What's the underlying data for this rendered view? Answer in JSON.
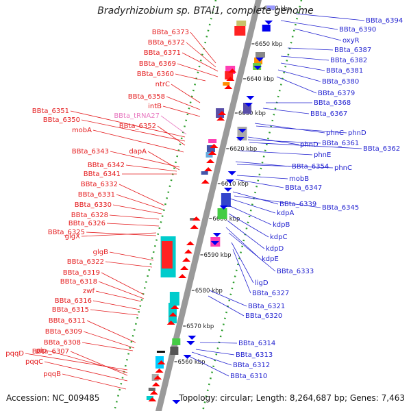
{
  "title": "Bradyrhizobium sp. BTAi1, complete genome",
  "footer": {
    "accession": "Accession: NC_009485",
    "summary": "Topology: circular; Length: 8,264,687 bp; Genes: 7,463"
  },
  "colors": {
    "forward_label": "#e41a1c",
    "reverse_label": "#1f1fcf",
    "rna_label": "#e879c0",
    "forward_gene": "#ff0000",
    "reverse_gene": "#0000ee",
    "backbone": "#999999",
    "tick_dots": "#2e9e2e"
  },
  "ticks": [
    "6660 kbp",
    "6650 kbp",
    "6640 kbp",
    "6630 kbp",
    "6620 kbp",
    "6610 kbp",
    "6600 kbp",
    "6590 kbp",
    "6580 kbp",
    "6570 kbp",
    "6560 kbp"
  ],
  "left_labels": [
    {
      "text": "BBta_6373",
      "class": "red"
    },
    {
      "text": "BBta_6372",
      "class": "red"
    },
    {
      "text": "BBta_6371",
      "class": "red"
    },
    {
      "text": "BBta_6369",
      "class": "red"
    },
    {
      "text": "BBta_6360",
      "class": "red"
    },
    {
      "text": "ntrC",
      "class": "red"
    },
    {
      "text": "BBta_6358",
      "class": "red"
    },
    {
      "text": "intB",
      "class": "red"
    },
    {
      "text": "BBta_6351",
      "class": "red"
    },
    {
      "text": "BBta_6350",
      "class": "red"
    },
    {
      "text": "BBta_tRNA27",
      "class": "pink"
    },
    {
      "text": "BBta_6352",
      "class": "red"
    },
    {
      "text": "mobA",
      "class": "red"
    },
    {
      "text": "BBta_6343",
      "class": "red"
    },
    {
      "text": "dapA",
      "class": "red"
    },
    {
      "text": "BBta_6342",
      "class": "red"
    },
    {
      "text": "BBta_6341",
      "class": "red"
    },
    {
      "text": "BBta_6332",
      "class": "red"
    },
    {
      "text": "BBta_6331",
      "class": "red"
    },
    {
      "text": "BBta_6330",
      "class": "red"
    },
    {
      "text": "BBta_6328",
      "class": "red"
    },
    {
      "text": "BBta_6326",
      "class": "red"
    },
    {
      "text": "glgX",
      "class": "red"
    },
    {
      "text": "BBta_6325",
      "class": "red"
    },
    {
      "text": "glgB",
      "class": "red"
    },
    {
      "text": "BBta_6322",
      "class": "red"
    },
    {
      "text": "BBta_6319",
      "class": "red"
    },
    {
      "text": "BBta_6318",
      "class": "red"
    },
    {
      "text": "zwf",
      "class": "red"
    },
    {
      "text": "BBta_6316",
      "class": "red"
    },
    {
      "text": "BBta_6315",
      "class": "red"
    },
    {
      "text": "BBta_6311",
      "class": "red"
    },
    {
      "text": "BBta_6309",
      "class": "red"
    },
    {
      "text": "BBta_6308",
      "class": "red"
    },
    {
      "text": "pqqD",
      "class": "red"
    },
    {
      "text": "pip",
      "class": "red"
    },
    {
      "text": "BBta_6307",
      "class": "red"
    },
    {
      "text": "pqqC",
      "class": "red"
    },
    {
      "text": "pqqB",
      "class": "red"
    }
  ],
  "right_labels": [
    {
      "text": "BBta_6394"
    },
    {
      "text": "BBta_6390"
    },
    {
      "text": "oxyR"
    },
    {
      "text": "BBta_6387"
    },
    {
      "text": "BBta_6382"
    },
    {
      "text": "BBta_6381"
    },
    {
      "text": "BBta_6380"
    },
    {
      "text": "BBta_6379"
    },
    {
      "text": "BBta_6368"
    },
    {
      "text": "BBta_6367"
    },
    {
      "text": "phnC"
    },
    {
      "text": "phnD"
    },
    {
      "text": "phnD"
    },
    {
      "text": "BBta_6361"
    },
    {
      "text": "BBta_6362"
    },
    {
      "text": "phnE"
    },
    {
      "text": "BBta_6354"
    },
    {
      "text": "phnC"
    },
    {
      "text": "mobB"
    },
    {
      "text": "BBta_6347"
    },
    {
      "text": "BBta_6339"
    },
    {
      "text": "BBta_6345"
    },
    {
      "text": "kdpA"
    },
    {
      "text": "kdpB"
    },
    {
      "text": "kdpC"
    },
    {
      "text": "kdpD"
    },
    {
      "text": "kdpE"
    },
    {
      "text": "BBta_6333"
    },
    {
      "text": "ligD"
    },
    {
      "text": "BBta_6327"
    },
    {
      "text": "BBta_6321"
    },
    {
      "text": "BBta_6320"
    },
    {
      "text": "BBta_6314"
    },
    {
      "text": "BBta_6313"
    },
    {
      "text": "BBta_6312"
    },
    {
      "text": "BBta_6310"
    }
  ]
}
